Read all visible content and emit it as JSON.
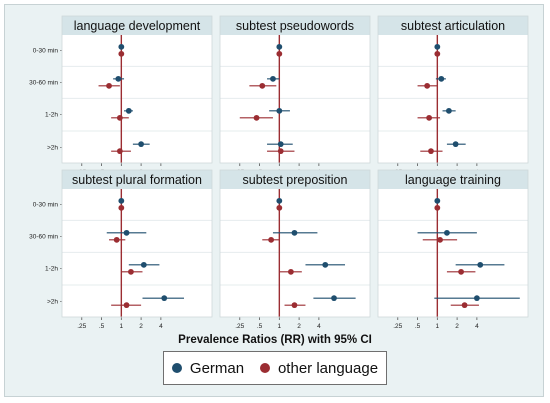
{
  "chart_data": {
    "type": "forest",
    "xlabel": "Prevalence Ratios (RR) with 95% CI",
    "x_scale": "log",
    "x_ticks": [
      ".25",
      ".5",
      "1",
      "2",
      "4"
    ],
    "row_labels": [
      "0-30 min",
      "30-60 min",
      "1-2h",
      ">2h"
    ],
    "reference_line": 1,
    "series": [
      {
        "name": "German",
        "color": "#1f4e6e"
      },
      {
        "name": "other language",
        "color": "#9b2d32"
      }
    ],
    "panels": [
      {
        "title": "language development",
        "German": [
          [
            1,
            1,
            1
          ],
          [
            0.9,
            0.75,
            1.1
          ],
          [
            1.3,
            1.1,
            1.5
          ],
          [
            2.0,
            1.5,
            2.7
          ]
        ],
        "other language": [
          [
            1,
            1,
            1
          ],
          [
            0.65,
            0.45,
            0.95
          ],
          [
            0.95,
            0.7,
            1.3
          ],
          [
            0.95,
            0.7,
            1.4
          ]
        ]
      },
      {
        "title": "subtest pseudowords",
        "German": [
          [
            1,
            1,
            1
          ],
          [
            0.8,
            0.65,
            1.0
          ],
          [
            1.0,
            0.7,
            1.45
          ],
          [
            1.05,
            0.65,
            1.6
          ]
        ],
        "other language": [
          [
            1,
            1,
            1
          ],
          [
            0.55,
            0.35,
            0.9
          ],
          [
            0.45,
            0.25,
            0.8
          ],
          [
            1.05,
            0.65,
            1.7
          ]
        ]
      },
      {
        "title": "subtest articulation",
        "German": [
          [
            1,
            1,
            1
          ],
          [
            1.15,
            0.95,
            1.35
          ],
          [
            1.5,
            1.2,
            1.9
          ],
          [
            1.9,
            1.4,
            2.7
          ]
        ],
        "other language": [
          [
            1,
            1,
            1
          ],
          [
            0.7,
            0.5,
            1.0
          ],
          [
            0.75,
            0.5,
            1.1
          ],
          [
            0.8,
            0.55,
            1.2
          ]
        ]
      },
      {
        "title": "subtest plural formation",
        "German": [
          [
            1,
            1,
            1
          ],
          [
            1.2,
            0.6,
            2.4
          ],
          [
            2.2,
            1.3,
            3.8
          ],
          [
            4.5,
            2.1,
            9.0
          ]
        ],
        "other language": [
          [
            1,
            1,
            1
          ],
          [
            0.85,
            0.65,
            1.15
          ],
          [
            1.4,
            1.0,
            2.1
          ],
          [
            1.2,
            0.7,
            2.0
          ]
        ]
      },
      {
        "title": "subtest preposition",
        "German": [
          [
            1,
            1,
            1
          ],
          [
            1.7,
            0.8,
            3.8
          ],
          [
            5.0,
            2.5,
            10.0
          ],
          [
            6.8,
            3.3,
            14.5
          ]
        ],
        "other language": [
          [
            1,
            1,
            1
          ],
          [
            0.75,
            0.55,
            1.0
          ],
          [
            1.5,
            1.0,
            2.2
          ],
          [
            1.7,
            1.2,
            2.5
          ]
        ]
      },
      {
        "title": "language training",
        "German": [
          [
            1,
            1,
            1
          ],
          [
            1.4,
            0.5,
            4.0
          ],
          [
            4.5,
            1.9,
            10.5
          ],
          [
            4.0,
            0.9,
            18.0
          ]
        ],
        "other language": [
          [
            1,
            1,
            1
          ],
          [
            1.1,
            0.6,
            2.0
          ],
          [
            2.3,
            1.4,
            3.8
          ],
          [
            2.6,
            1.6,
            4.3
          ]
        ]
      }
    ]
  }
}
